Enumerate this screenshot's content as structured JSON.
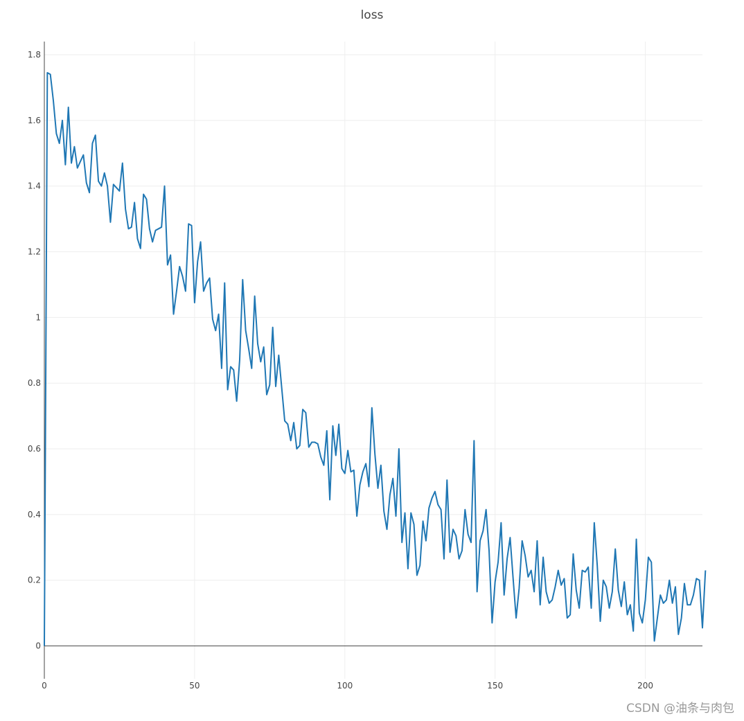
{
  "chart_data": {
    "type": "line",
    "title": "loss",
    "xlabel": "",
    "ylabel": "",
    "xlim": [
      0,
      219
    ],
    "ylim": [
      -0.1,
      1.84
    ],
    "grid": true,
    "xticks": [
      0,
      50,
      100,
      150,
      200
    ],
    "yticks": [
      0,
      0.2,
      0.4,
      0.6,
      0.8,
      1,
      1.2,
      1.4,
      1.6,
      1.8
    ],
    "ytick_labels": [
      "0",
      "0.2",
      "0.4",
      "0.6",
      "0.8",
      "1",
      "1.2",
      "1.4",
      "1.6",
      "1.8"
    ],
    "series": [
      {
        "color": "#1f77b4",
        "values": [
          0,
          1.745,
          1.74,
          1.66,
          1.56,
          1.53,
          1.6,
          1.465,
          1.64,
          1.47,
          1.52,
          1.455,
          1.475,
          1.495,
          1.41,
          1.38,
          1.53,
          1.555,
          1.415,
          1.4,
          1.44,
          1.4,
          1.29,
          1.405,
          1.395,
          1.385,
          1.47,
          1.33,
          1.27,
          1.275,
          1.35,
          1.24,
          1.21,
          1.375,
          1.36,
          1.27,
          1.23,
          1.265,
          1.27,
          1.275,
          1.4,
          1.16,
          1.19,
          1.01,
          1.08,
          1.155,
          1.125,
          1.08,
          1.285,
          1.28,
          1.045,
          1.17,
          1.23,
          1.08,
          1.105,
          1.12,
          0.995,
          0.96,
          1.01,
          0.845,
          1.105,
          0.78,
          0.85,
          0.84,
          0.745,
          0.87,
          1.115,
          0.96,
          0.905,
          0.845,
          1.065,
          0.92,
          0.865,
          0.91,
          0.765,
          0.795,
          0.97,
          0.79,
          0.885,
          0.785,
          0.685,
          0.675,
          0.625,
          0.68,
          0.6,
          0.61,
          0.72,
          0.71,
          0.605,
          0.62,
          0.62,
          0.615,
          0.575,
          0.55,
          0.655,
          0.445,
          0.67,
          0.58,
          0.675,
          0.54,
          0.525,
          0.595,
          0.53,
          0.535,
          0.395,
          0.49,
          0.53,
          0.555,
          0.485,
          0.725,
          0.585,
          0.48,
          0.55,
          0.41,
          0.355,
          0.46,
          0.51,
          0.395,
          0.6,
          0.315,
          0.405,
          0.235,
          0.405,
          0.37,
          0.215,
          0.245,
          0.38,
          0.32,
          0.42,
          0.45,
          0.47,
          0.43,
          0.415,
          0.265,
          0.505,
          0.285,
          0.355,
          0.335,
          0.265,
          0.29,
          0.415,
          0.34,
          0.315,
          0.625,
          0.165,
          0.32,
          0.35,
          0.415,
          0.29,
          0.07,
          0.195,
          0.255,
          0.375,
          0.155,
          0.265,
          0.33,
          0.205,
          0.085,
          0.175,
          0.32,
          0.275,
          0.21,
          0.23,
          0.165,
          0.32,
          0.125,
          0.27,
          0.165,
          0.13,
          0.14,
          0.18,
          0.23,
          0.185,
          0.205,
          0.085,
          0.095,
          0.28,
          0.17,
          0.115,
          0.23,
          0.225,
          0.24,
          0.115,
          0.375,
          0.245,
          0.075,
          0.2,
          0.18,
          0.115,
          0.165,
          0.295,
          0.17,
          0.12,
          0.195,
          0.095,
          0.125,
          0.045,
          0.325,
          0.1,
          0.07,
          0.14,
          0.27,
          0.255,
          0.015,
          0.085,
          0.155,
          0.13,
          0.14,
          0.2,
          0.13,
          0.18,
          0.035,
          0.085,
          0.19,
          0.125,
          0.125,
          0.155,
          0.205,
          0.2,
          0.055,
          0.23
        ]
      }
    ]
  },
  "watermark": "CSDN @油条与肉包"
}
